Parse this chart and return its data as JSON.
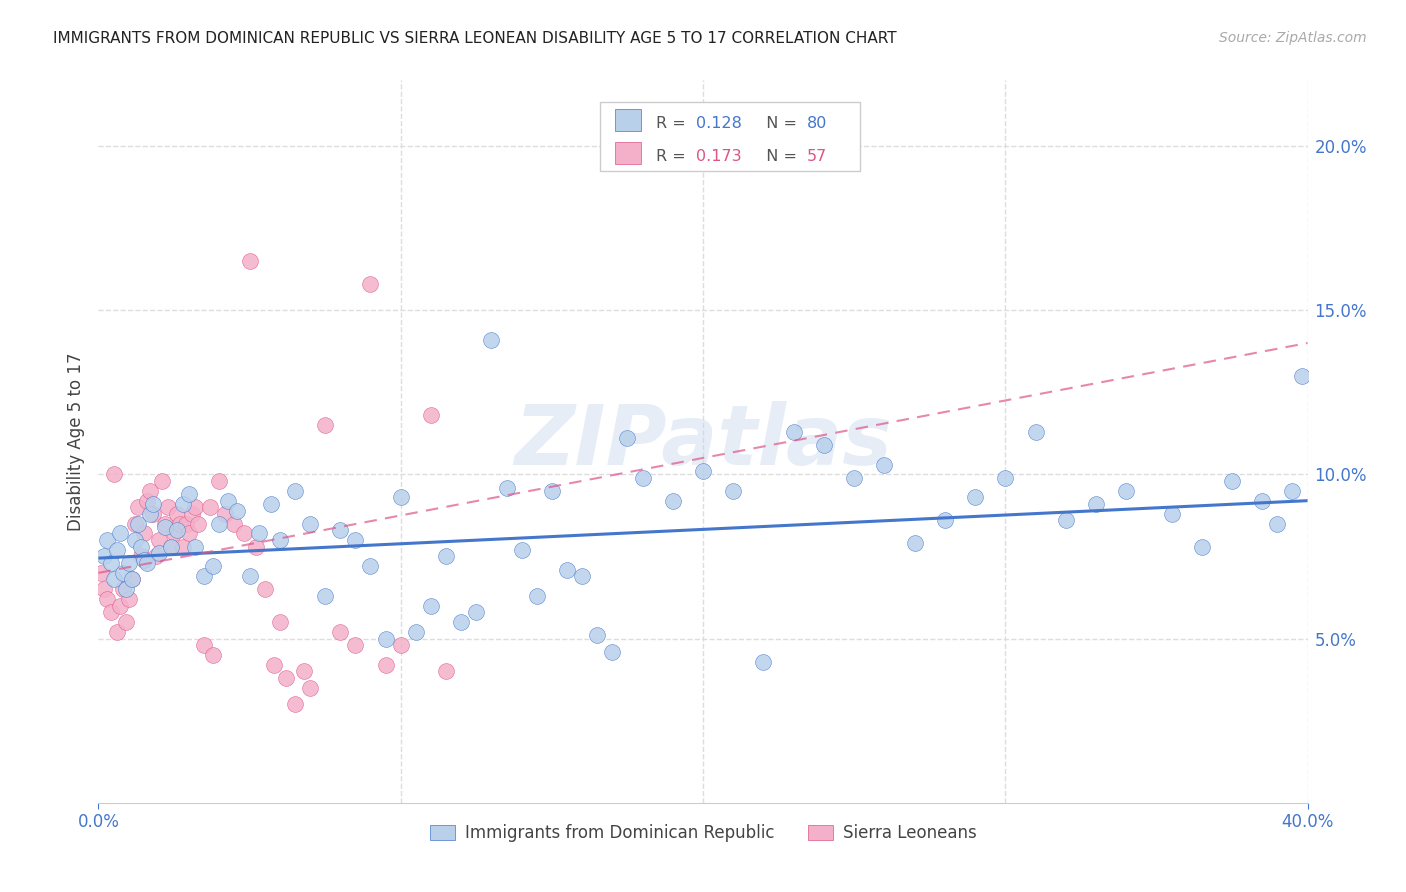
{
  "title": "IMMIGRANTS FROM DOMINICAN REPUBLIC VS SIERRA LEONEAN DISABILITY AGE 5 TO 17 CORRELATION CHART",
  "source": "Source: ZipAtlas.com",
  "ylabel": "Disability Age 5 to 17",
  "xlim": [
    0.0,
    0.4
  ],
  "ylim": [
    0.0,
    0.22
  ],
  "yticks_right": [
    0.05,
    0.1,
    0.15,
    0.2
  ],
  "ytick_labels_right": [
    "5.0%",
    "10.0%",
    "15.0%",
    "20.0%"
  ],
  "blue_color": "#b8d0ea",
  "blue_line_color": "#4477cc",
  "pink_color": "#f4b0c8",
  "pink_line_color": "#dd5588",
  "watermark": "ZIPatlas",
  "grid_color": "#dddddd",
  "title_color": "#222222",
  "axis_label_color": "#4477cc",
  "blue_trend_x": [
    0.0,
    0.4
  ],
  "blue_trend_y": [
    0.0745,
    0.092
  ],
  "pink_trend_x": [
    0.0,
    0.4
  ],
  "pink_trend_y": [
    0.07,
    0.14
  ],
  "blue_scatter_x": [
    0.002,
    0.003,
    0.004,
    0.005,
    0.006,
    0.007,
    0.008,
    0.009,
    0.01,
    0.011,
    0.012,
    0.013,
    0.014,
    0.015,
    0.016,
    0.017,
    0.018,
    0.02,
    0.022,
    0.024,
    0.026,
    0.028,
    0.03,
    0.032,
    0.035,
    0.038,
    0.04,
    0.043,
    0.046,
    0.05,
    0.053,
    0.057,
    0.06,
    0.065,
    0.07,
    0.075,
    0.08,
    0.085,
    0.09,
    0.095,
    0.1,
    0.105,
    0.11,
    0.115,
    0.12,
    0.125,
    0.13,
    0.135,
    0.14,
    0.145,
    0.15,
    0.155,
    0.16,
    0.165,
    0.17,
    0.175,
    0.18,
    0.19,
    0.2,
    0.21,
    0.22,
    0.23,
    0.24,
    0.25,
    0.26,
    0.27,
    0.28,
    0.29,
    0.3,
    0.31,
    0.32,
    0.33,
    0.34,
    0.355,
    0.365,
    0.375,
    0.385,
    0.39,
    0.395,
    0.398
  ],
  "blue_scatter_y": [
    0.075,
    0.08,
    0.073,
    0.068,
    0.077,
    0.082,
    0.07,
    0.065,
    0.073,
    0.068,
    0.08,
    0.085,
    0.078,
    0.074,
    0.073,
    0.088,
    0.091,
    0.076,
    0.084,
    0.078,
    0.083,
    0.091,
    0.094,
    0.078,
    0.069,
    0.072,
    0.085,
    0.092,
    0.089,
    0.069,
    0.082,
    0.091,
    0.08,
    0.095,
    0.085,
    0.063,
    0.083,
    0.08,
    0.072,
    0.05,
    0.093,
    0.052,
    0.06,
    0.075,
    0.055,
    0.058,
    0.141,
    0.096,
    0.077,
    0.063,
    0.095,
    0.071,
    0.069,
    0.051,
    0.046,
    0.111,
    0.099,
    0.092,
    0.101,
    0.095,
    0.043,
    0.113,
    0.109,
    0.099,
    0.103,
    0.079,
    0.086,
    0.093,
    0.099,
    0.113,
    0.086,
    0.091,
    0.095,
    0.088,
    0.078,
    0.098,
    0.092,
    0.085,
    0.095,
    0.13
  ],
  "pink_scatter_x": [
    0.001,
    0.002,
    0.003,
    0.004,
    0.005,
    0.006,
    0.007,
    0.008,
    0.009,
    0.01,
    0.011,
    0.012,
    0.013,
    0.014,
    0.015,
    0.016,
    0.017,
    0.018,
    0.019,
    0.02,
    0.021,
    0.022,
    0.023,
    0.024,
    0.025,
    0.026,
    0.027,
    0.028,
    0.029,
    0.03,
    0.031,
    0.032,
    0.033,
    0.035,
    0.037,
    0.038,
    0.04,
    0.042,
    0.045,
    0.048,
    0.05,
    0.052,
    0.055,
    0.058,
    0.06,
    0.062,
    0.065,
    0.068,
    0.07,
    0.075,
    0.08,
    0.085,
    0.09,
    0.095,
    0.1,
    0.11,
    0.115
  ],
  "pink_scatter_y": [
    0.07,
    0.065,
    0.062,
    0.058,
    0.1,
    0.052,
    0.06,
    0.065,
    0.055,
    0.062,
    0.068,
    0.085,
    0.09,
    0.075,
    0.082,
    0.092,
    0.095,
    0.088,
    0.075,
    0.08,
    0.098,
    0.085,
    0.09,
    0.078,
    0.082,
    0.088,
    0.085,
    0.078,
    0.085,
    0.082,
    0.088,
    0.09,
    0.085,
    0.048,
    0.09,
    0.045,
    0.098,
    0.088,
    0.085,
    0.082,
    0.165,
    0.078,
    0.065,
    0.042,
    0.055,
    0.038,
    0.03,
    0.04,
    0.035,
    0.115,
    0.052,
    0.048,
    0.158,
    0.042,
    0.048,
    0.118,
    0.04
  ]
}
